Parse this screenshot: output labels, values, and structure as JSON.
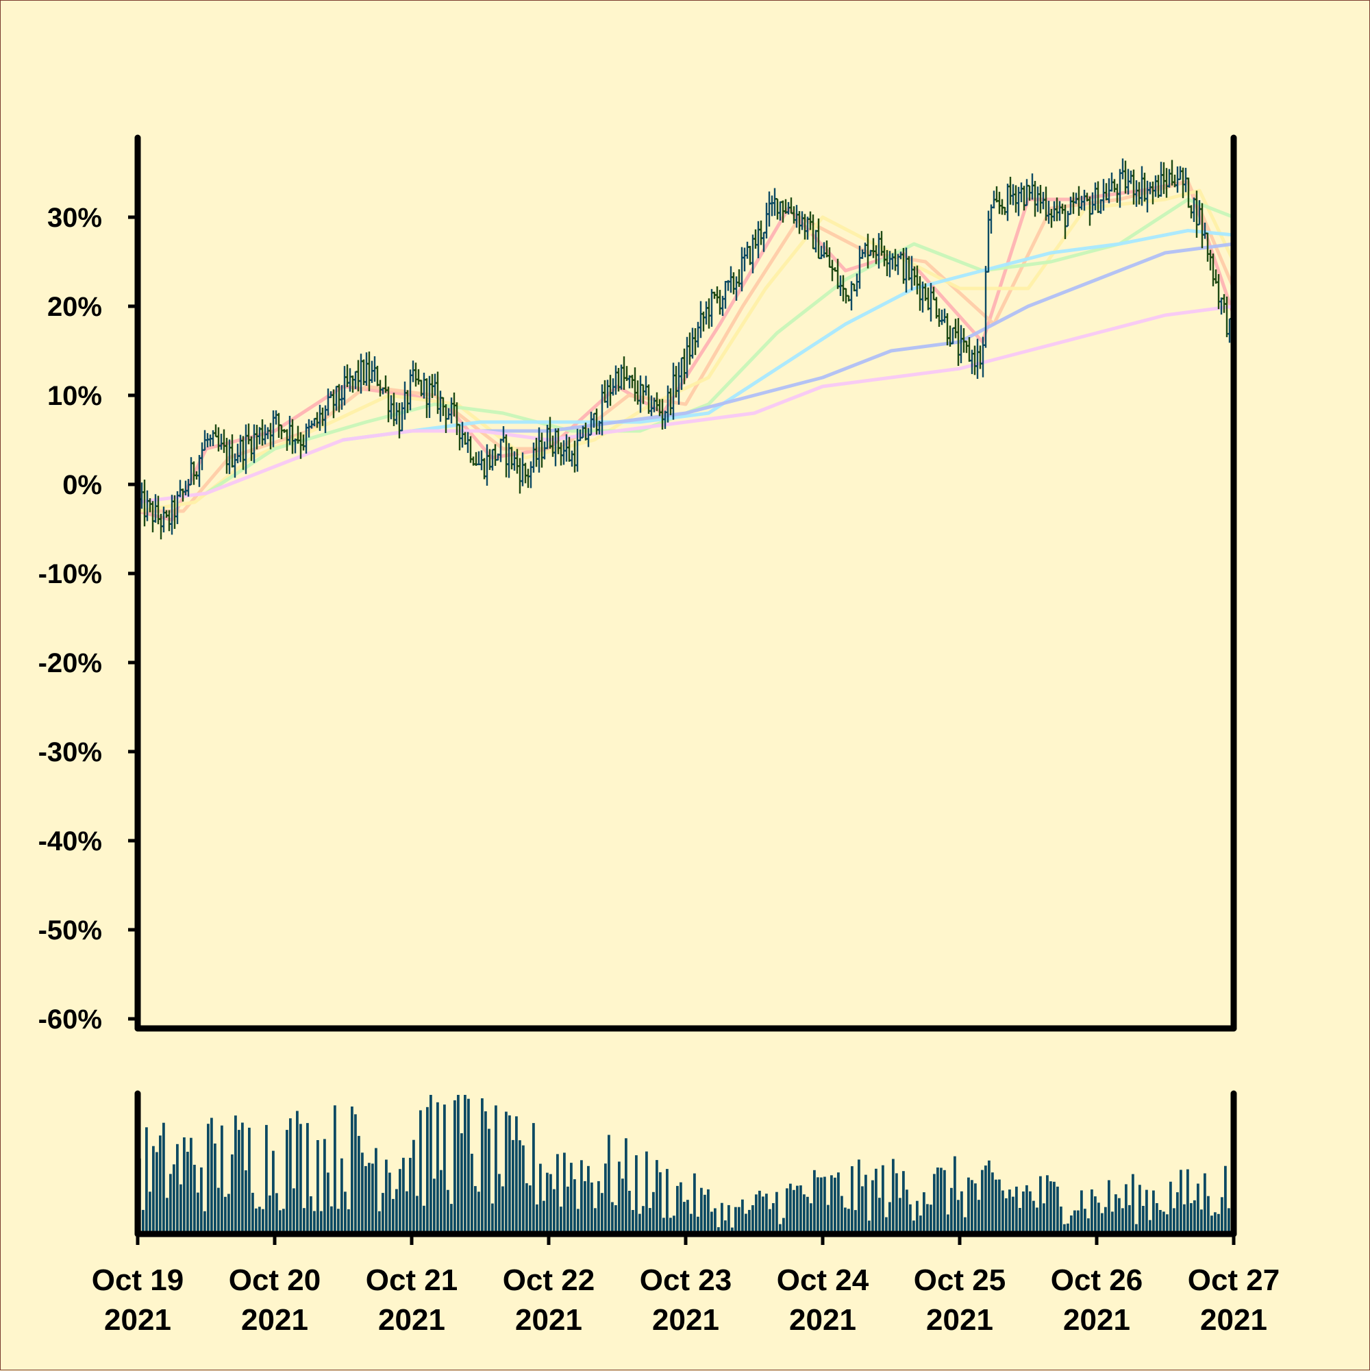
{
  "background": "#fff6cc",
  "chart_data": {
    "type": "ohlc",
    "y_unit": "percent change",
    "ylim": [
      -60,
      38
    ],
    "y_ticks": [
      "30%",
      "20%",
      "10%",
      "0%",
      "-10%",
      "-20%",
      "-30%",
      "-40%",
      "-50%",
      "-60%"
    ],
    "y_tick_values": [
      30,
      20,
      10,
      0,
      -10,
      -20,
      -30,
      -40,
      -50,
      -60
    ],
    "x_range": [
      "2021-10-19",
      "2021-10-27"
    ],
    "x_tick_labels": [
      [
        "Oct 19",
        "2021"
      ],
      [
        "Oct 20",
        "2021"
      ],
      [
        "Oct 21",
        "2021"
      ],
      [
        "Oct 22",
        "2021"
      ],
      [
        "Oct 23",
        "2021"
      ],
      [
        "Oct 24",
        "2021"
      ],
      [
        "Oct 25",
        "2021"
      ],
      [
        "Oct 26",
        "2021"
      ],
      [
        "Oct 27",
        "2021"
      ]
    ],
    "bar_colors": {
      "up": "#0d4a63",
      "down": "#1f4a13"
    },
    "close_path": [
      [
        "2021-10-19T00:00",
        -2.0
      ],
      [
        "2021-10-19T05:00",
        -4.5
      ],
      [
        "2021-10-19T08:00",
        -1.0
      ],
      [
        "2021-10-19T12:00",
        5.0
      ],
      [
        "2021-10-19T16:00",
        3.0
      ],
      [
        "2021-10-19T20:00",
        5.0
      ],
      [
        "2021-10-20T00:00",
        7.0
      ],
      [
        "2021-10-20T05:00",
        5.0
      ],
      [
        "2021-10-20T10:00",
        9.0
      ],
      [
        "2021-10-20T15:00",
        12.5
      ],
      [
        "2021-10-20T18:00",
        12.0
      ],
      [
        "2021-10-20T22:00",
        7.0
      ],
      [
        "2021-10-21T00:00",
        11.5
      ],
      [
        "2021-10-21T04:00",
        10.0
      ],
      [
        "2021-10-21T08:00",
        7.0
      ],
      [
        "2021-10-21T12:00",
        2.0
      ],
      [
        "2021-10-21T16:00",
        4.0
      ],
      [
        "2021-10-21T20:00",
        1.0
      ],
      [
        "2021-10-22T00:00",
        5.5
      ],
      [
        "2021-10-22T04:00",
        3.0
      ],
      [
        "2021-10-22T08:00",
        7.0
      ],
      [
        "2021-10-22T12:00",
        12.5
      ],
      [
        "2021-10-22T16:00",
        10.0
      ],
      [
        "2021-10-22T20:00",
        8.0
      ],
      [
        "2021-10-23T00:00",
        14.0
      ],
      [
        "2021-10-23T04:00",
        20.0
      ],
      [
        "2021-10-23T08:00",
        22.0
      ],
      [
        "2021-10-23T12:00",
        27.0
      ],
      [
        "2021-10-23T16:00",
        32.0
      ],
      [
        "2021-10-23T20:00",
        30.0
      ],
      [
        "2021-10-24T00:00",
        26.0
      ],
      [
        "2021-10-24T04:00",
        21.0
      ],
      [
        "2021-10-24T08:00",
        27.0
      ],
      [
        "2021-10-24T12:00",
        26.0
      ],
      [
        "2021-10-24T16:00",
        23.0
      ],
      [
        "2021-10-24T20:00",
        20.0
      ],
      [
        "2021-10-25T00:00",
        15.0
      ],
      [
        "2021-10-25T04:00",
        14.0
      ],
      [
        "2021-10-25T05:00",
        30.0
      ],
      [
        "2021-10-25T10:00",
        33.0
      ],
      [
        "2021-10-25T14:00",
        32.0
      ],
      [
        "2021-10-25T18:00",
        30.0
      ],
      [
        "2021-10-26T00:00",
        32.0
      ],
      [
        "2021-10-26T05:00",
        34.0
      ],
      [
        "2021-10-26T10:00",
        33.0
      ],
      [
        "2021-10-26T14:00",
        35.0
      ],
      [
        "2021-10-26T18:00",
        30.0
      ],
      [
        "2021-10-26T22:00",
        20.0
      ],
      [
        "2021-10-27T00:00",
        16.0
      ]
    ],
    "moving_averages": [
      {
        "color": "#ffb3b3",
        "points": [
          [
            "2021-10-19T00:00",
            -3
          ],
          [
            "2021-10-19T06:00",
            -4
          ],
          [
            "2021-10-19T12:00",
            4
          ],
          [
            "2021-10-20T00:00",
            6
          ],
          [
            "2021-10-20T12:00",
            11
          ],
          [
            "2021-10-21T00:00",
            10
          ],
          [
            "2021-10-21T06:00",
            9
          ],
          [
            "2021-10-21T14:00",
            3
          ],
          [
            "2021-10-22T00:00",
            4
          ],
          [
            "2021-10-22T12:00",
            11
          ],
          [
            "2021-10-22T20:00",
            8
          ],
          [
            "2021-10-23T06:00",
            18
          ],
          [
            "2021-10-23T18:00",
            31
          ],
          [
            "2021-10-24T04:00",
            24
          ],
          [
            "2021-10-24T14:00",
            26
          ],
          [
            "2021-10-25T04:00",
            16
          ],
          [
            "2021-10-25T12:00",
            32
          ],
          [
            "2021-10-25T20:00",
            32
          ],
          [
            "2021-10-26T08:00",
            33
          ],
          [
            "2021-10-26T16:00",
            34
          ],
          [
            "2021-10-27T00:00",
            19
          ]
        ]
      },
      {
        "color": "#ffcca8",
        "points": [
          [
            "2021-10-19T00:00",
            -3
          ],
          [
            "2021-10-19T08:00",
            -3
          ],
          [
            "2021-10-19T16:00",
            3
          ],
          [
            "2021-10-20T06:00",
            6
          ],
          [
            "2021-10-20T16:00",
            11
          ],
          [
            "2021-10-21T04:00",
            10
          ],
          [
            "2021-10-21T16:00",
            4
          ],
          [
            "2021-10-22T02:00",
            4
          ],
          [
            "2021-10-22T14:00",
            10
          ],
          [
            "2021-10-23T00:00",
            9
          ],
          [
            "2021-10-23T10:00",
            20
          ],
          [
            "2021-10-23T20:00",
            30
          ],
          [
            "2021-10-24T08:00",
            26
          ],
          [
            "2021-10-24T18:00",
            25
          ],
          [
            "2021-10-25T06:00",
            18
          ],
          [
            "2021-10-25T16:00",
            31
          ],
          [
            "2021-10-26T04:00",
            32
          ],
          [
            "2021-10-26T16:00",
            34
          ],
          [
            "2021-10-27T00:00",
            22
          ]
        ]
      },
      {
        "color": "#fff0a8",
        "points": [
          [
            "2021-10-19T00:00",
            -3
          ],
          [
            "2021-10-19T10:00",
            -2
          ],
          [
            "2021-10-19T20:00",
            3
          ],
          [
            "2021-10-20T10:00",
            7
          ],
          [
            "2021-10-20T20:00",
            10
          ],
          [
            "2021-10-21T08:00",
            9
          ],
          [
            "2021-10-21T20:00",
            3
          ],
          [
            "2021-10-22T08:00",
            5
          ],
          [
            "2021-10-22T18:00",
            9
          ],
          [
            "2021-10-23T04:00",
            12
          ],
          [
            "2021-10-23T14:00",
            22
          ],
          [
            "2021-10-24T00:00",
            30
          ],
          [
            "2021-10-24T12:00",
            26
          ],
          [
            "2021-10-25T00:00",
            22
          ],
          [
            "2021-10-25T12:00",
            22
          ],
          [
            "2021-10-25T22:00",
            31
          ],
          [
            "2021-10-26T12:00",
            32
          ],
          [
            "2021-10-26T18:00",
            33
          ],
          [
            "2021-10-27T00:00",
            25
          ]
        ]
      },
      {
        "color": "#c8f5b8",
        "points": [
          [
            "2021-10-19T12:00",
            -1
          ],
          [
            "2021-10-20T00:00",
            4
          ],
          [
            "2021-10-20T16:00",
            7
          ],
          [
            "2021-10-21T04:00",
            9
          ],
          [
            "2021-10-21T16:00",
            8
          ],
          [
            "2021-10-22T04:00",
            6
          ],
          [
            "2021-10-22T16:00",
            6
          ],
          [
            "2021-10-23T04:00",
            9
          ],
          [
            "2021-10-23T16:00",
            17
          ],
          [
            "2021-10-24T04:00",
            23
          ],
          [
            "2021-10-24T16:00",
            27
          ],
          [
            "2021-10-25T04:00",
            24
          ],
          [
            "2021-10-25T16:00",
            25
          ],
          [
            "2021-10-26T04:00",
            27
          ],
          [
            "2021-10-26T16:00",
            32
          ],
          [
            "2021-10-27T00:00",
            30
          ]
        ]
      },
      {
        "color": "#a8e8ff",
        "points": [
          [
            "2021-10-20T12:00",
            5
          ],
          [
            "2021-10-21T00:00",
            6
          ],
          [
            "2021-10-21T12:00",
            7
          ],
          [
            "2021-10-22T00:00",
            7
          ],
          [
            "2021-10-22T16:00",
            7
          ],
          [
            "2021-10-23T04:00",
            8
          ],
          [
            "2021-10-23T16:00",
            13
          ],
          [
            "2021-10-24T04:00",
            18
          ],
          [
            "2021-10-24T16:00",
            22
          ],
          [
            "2021-10-25T04:00",
            24
          ],
          [
            "2021-10-25T16:00",
            26
          ],
          [
            "2021-10-26T04:00",
            27
          ],
          [
            "2021-10-26T16:00",
            28.5
          ],
          [
            "2021-10-27T00:00",
            28
          ]
        ]
      },
      {
        "color": "#b0bff5",
        "points": [
          [
            "2021-10-21T12:00",
            6
          ],
          [
            "2021-10-22T00:00",
            6
          ],
          [
            "2021-10-22T12:00",
            7
          ],
          [
            "2021-10-23T00:00",
            8
          ],
          [
            "2021-10-23T12:00",
            10
          ],
          [
            "2021-10-24T00:00",
            12
          ],
          [
            "2021-10-24T12:00",
            15
          ],
          [
            "2021-10-25T00:00",
            16
          ],
          [
            "2021-10-25T12:00",
            20
          ],
          [
            "2021-10-26T00:00",
            23
          ],
          [
            "2021-10-26T12:00",
            26
          ],
          [
            "2021-10-27T00:00",
            27
          ]
        ]
      },
      {
        "color": "#f8c8f5",
        "points": [
          [
            "2021-10-19T00:00",
            -2
          ],
          [
            "2021-10-19T12:00",
            -1
          ],
          [
            "2021-10-20T00:00",
            2
          ],
          [
            "2021-10-20T12:00",
            5
          ],
          [
            "2021-10-21T00:00",
            6
          ],
          [
            "2021-10-21T12:00",
            6
          ],
          [
            "2021-10-22T00:00",
            5
          ],
          [
            "2021-10-22T12:00",
            6
          ],
          [
            "2021-10-23T00:00",
            7
          ],
          [
            "2021-10-23T12:00",
            8
          ],
          [
            "2021-10-24T00:00",
            11
          ],
          [
            "2021-10-24T12:00",
            12
          ],
          [
            "2021-10-25T00:00",
            13
          ],
          [
            "2021-10-25T12:00",
            15
          ],
          [
            "2021-10-26T00:00",
            17
          ],
          [
            "2021-10-26T12:00",
            19
          ],
          [
            "2021-10-27T00:00",
            20
          ]
        ]
      }
    ],
    "volume": {
      "color": "#0d4a63",
      "levels": [
        [
          "2021-10-19T00:00",
          0.5
        ],
        [
          "2021-10-19T12:00",
          0.55
        ],
        [
          "2021-10-20T00:00",
          0.6
        ],
        [
          "2021-10-20T12:00",
          0.6
        ],
        [
          "2021-10-21T00:00",
          0.6
        ],
        [
          "2021-10-21T08:00",
          0.75
        ],
        [
          "2021-10-21T16:00",
          0.55
        ],
        [
          "2021-10-22T00:00",
          0.5
        ],
        [
          "2021-10-22T12:00",
          0.45
        ],
        [
          "2021-10-23T00:00",
          0.3
        ],
        [
          "2021-10-23T08:00",
          0.15
        ],
        [
          "2021-10-23T20:00",
          0.3
        ],
        [
          "2021-10-24T12:00",
          0.35
        ],
        [
          "2021-10-25T00:00",
          0.35
        ],
        [
          "2021-10-25T12:00",
          0.3
        ],
        [
          "2021-10-26T00:00",
          0.25
        ],
        [
          "2021-10-26T16:00",
          0.3
        ],
        [
          "2021-10-27T00:00",
          0.35
        ]
      ]
    }
  }
}
